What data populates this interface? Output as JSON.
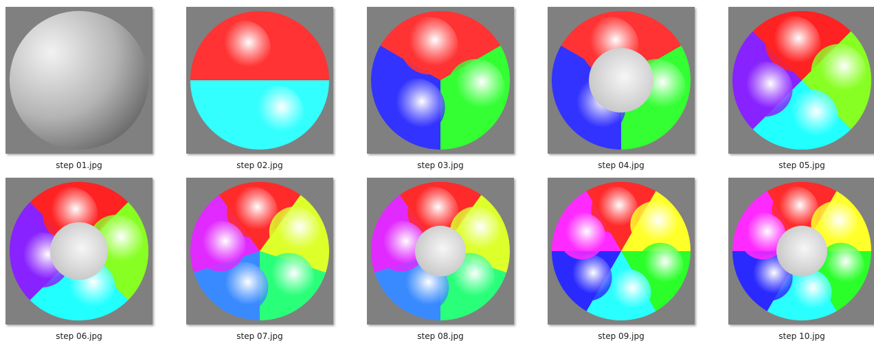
{
  "files": [
    {
      "name": "step 01.jpg",
      "center_color": "none",
      "petals": [
        "#bfbfbf"
      ]
    },
    {
      "name": "step 02.jpg",
      "center_color": "none",
      "petals": [
        "#ff3333",
        "#33ffff"
      ]
    },
    {
      "name": "step 03.jpg",
      "center_color": "none",
      "petals": [
        "#ff3333",
        "#33ff33",
        "#3333ff"
      ]
    },
    {
      "name": "step 04.jpg",
      "center_color": "#bdbdbd",
      "petals": [
        "#ff3333",
        "#33ff33",
        "#3333ff"
      ]
    },
    {
      "name": "step 05.jpg",
      "center_color": "none",
      "petals": [
        "#ff2222",
        "#88ff22",
        "#22ffff",
        "#8822ff"
      ]
    },
    {
      "name": "step 06.jpg",
      "center_color": "#bdbdbd",
      "petals": [
        "#ff2222",
        "#88ff22",
        "#22ffff",
        "#8822ff"
      ]
    },
    {
      "name": "step 07.jpg",
      "center_color": "none",
      "petals": [
        "#ff2a2a",
        "#ddff2a",
        "#2aff7a",
        "#3a8aff",
        "#e02aff"
      ]
    },
    {
      "name": "step 08.jpg",
      "center_color": "#bdbdbd",
      "petals": [
        "#ff2a2a",
        "#ddff2a",
        "#2aff7a",
        "#3a8aff",
        "#e02aff"
      ]
    },
    {
      "name": "step 09.jpg",
      "center_color": "none",
      "petals": [
        "#ff2a2a",
        "#ffff2a",
        "#2aff2a",
        "#2affff",
        "#2a2aff",
        "#ff2aff"
      ]
    },
    {
      "name": "step 10.jpg",
      "center_color": "#bdbdbd",
      "petals": [
        "#ff2a2a",
        "#ffff2a",
        "#2aff2a",
        "#2affff",
        "#2a2aff",
        "#ff2aff"
      ]
    }
  ]
}
